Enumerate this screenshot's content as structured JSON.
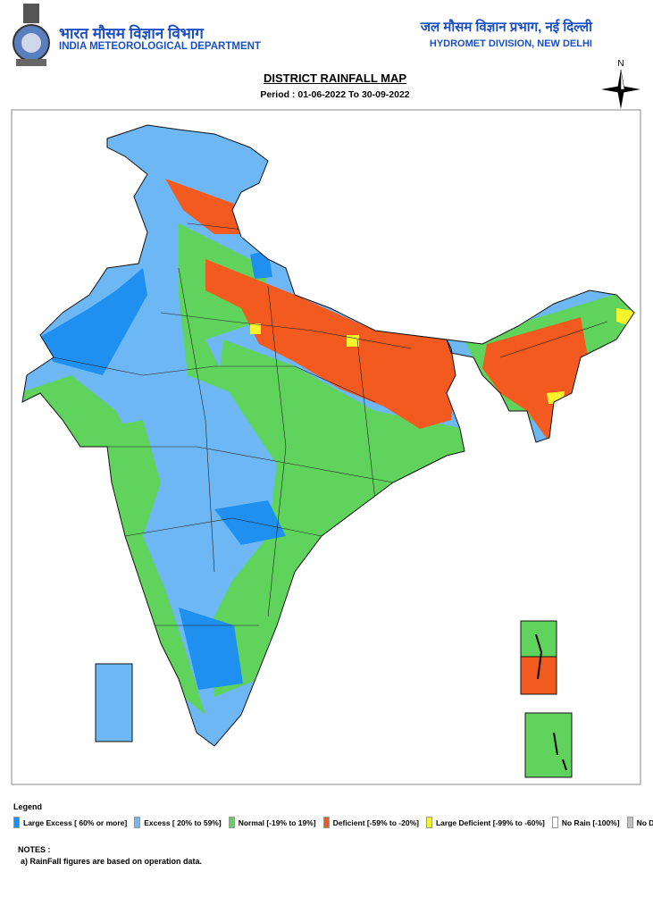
{
  "header": {
    "hindi_title": "भारत मौसम विज्ञान विभाग",
    "title": "INDIA METEOROLOGICAL DEPARTMENT",
    "division_hindi": "जल मौसम विज्ञान प्रभाग, नई दिल्ली",
    "division": "HYDROMET DIVISION, NEW DELHI"
  },
  "map": {
    "title": "DISTRICT RAINFALL MAP",
    "period": "Period : 01-06-2022 To 30-09-2022",
    "north_label": "N"
  },
  "legend": {
    "title": "Legend",
    "items": [
      {
        "label": "Large Excess [ 60% or more]",
        "color": "#1f8ff0"
      },
      {
        "label": "Excess [ 20% to 59%]",
        "color": "#6db8f4"
      },
      {
        "label": "Normal [-19% to 19%]",
        "color": "#5fd35c"
      },
      {
        "label": "Deficient [-59% to -20%]",
        "color": "#f25a1f"
      },
      {
        "label": "Large Deficient [-99% to -60%]",
        "color": "#f7f42c"
      },
      {
        "label": "No Rain  [-100%]",
        "color": "#ffffff"
      },
      {
        "label": "No Data",
        "color": "#c0c0c0"
      }
    ]
  },
  "notes": {
    "title": "NOTES :",
    "items": [
      "a) RainFall figures are based on operation data."
    ]
  }
}
